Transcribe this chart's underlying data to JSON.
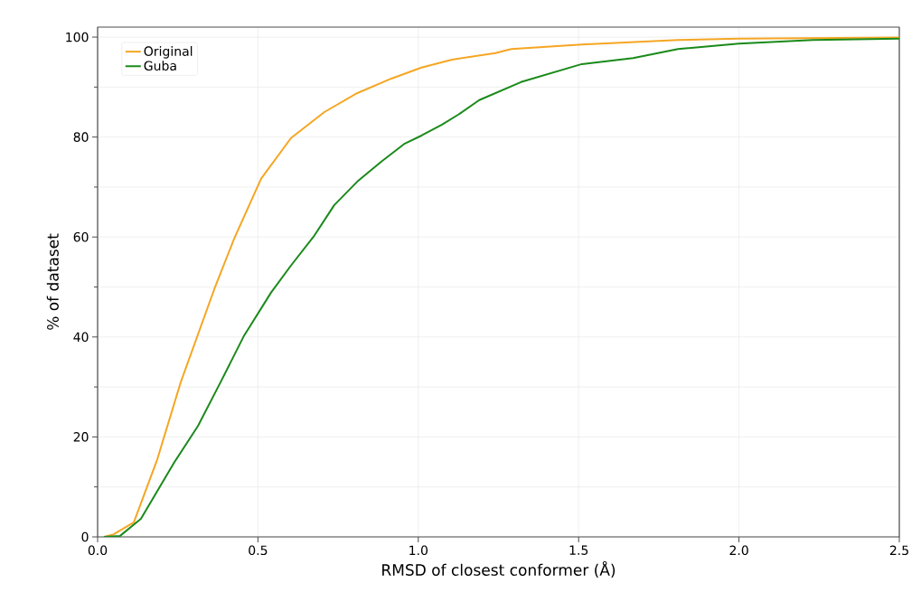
{
  "chart_data": {
    "type": "line",
    "xlabel": "RMSD of closest conformer (Å)",
    "ylabel": "% of dataset",
    "xlim": [
      0,
      2.5
    ],
    "ylim": [
      0,
      102
    ],
    "xticks": [
      {
        "value": 0,
        "label": "0.0"
      },
      0.5,
      {
        "value": 1,
        "label": "1.0"
      },
      1.5,
      {
        "value": 2,
        "label": "2.0"
      },
      2.5
    ],
    "yticks": [
      0,
      20,
      40,
      60,
      80,
      100
    ],
    "grid": true,
    "legend": "top left",
    "line_style": "solid",
    "marker": "none",
    "series": [
      {
        "name": "Original",
        "color": "#f5a623",
        "x": [
          0.02,
          0.05,
          0.113,
          0.186,
          0.259,
          0.364,
          0.426,
          0.51,
          0.603,
          0.707,
          0.81,
          0.916,
          1.01,
          1.105,
          1.24,
          1.29,
          1.51,
          1.81,
          2.0,
          2.5
        ],
        "values": [
          0,
          0.5,
          2.9,
          15.5,
          30.9,
          49.6,
          59.7,
          71.7,
          79.8,
          85,
          88.8,
          91.7,
          93.9,
          95.5,
          96.8,
          97.6,
          98.5,
          99.4,
          99.7,
          99.9
        ]
      },
      {
        "name": "Guba",
        "color": "#1a8a1a",
        "x": [
          0.02,
          0.07,
          0.135,
          0.24,
          0.313,
          0.383,
          0.457,
          0.541,
          0.603,
          0.676,
          0.738,
          0.81,
          0.885,
          0.958,
          1.01,
          1.074,
          1.125,
          1.19,
          1.32,
          1.51,
          1.67,
          1.81,
          2.0,
          2.23,
          2.5
        ],
        "values": [
          0,
          0.2,
          3.6,
          15,
          22.2,
          30.9,
          40.3,
          48.9,
          54.3,
          60.3,
          66.4,
          71.1,
          75.1,
          78.7,
          80.3,
          82.5,
          84.5,
          87.4,
          91,
          94.6,
          95.8,
          97.6,
          98.7,
          99.4,
          99.7
        ]
      }
    ]
  }
}
